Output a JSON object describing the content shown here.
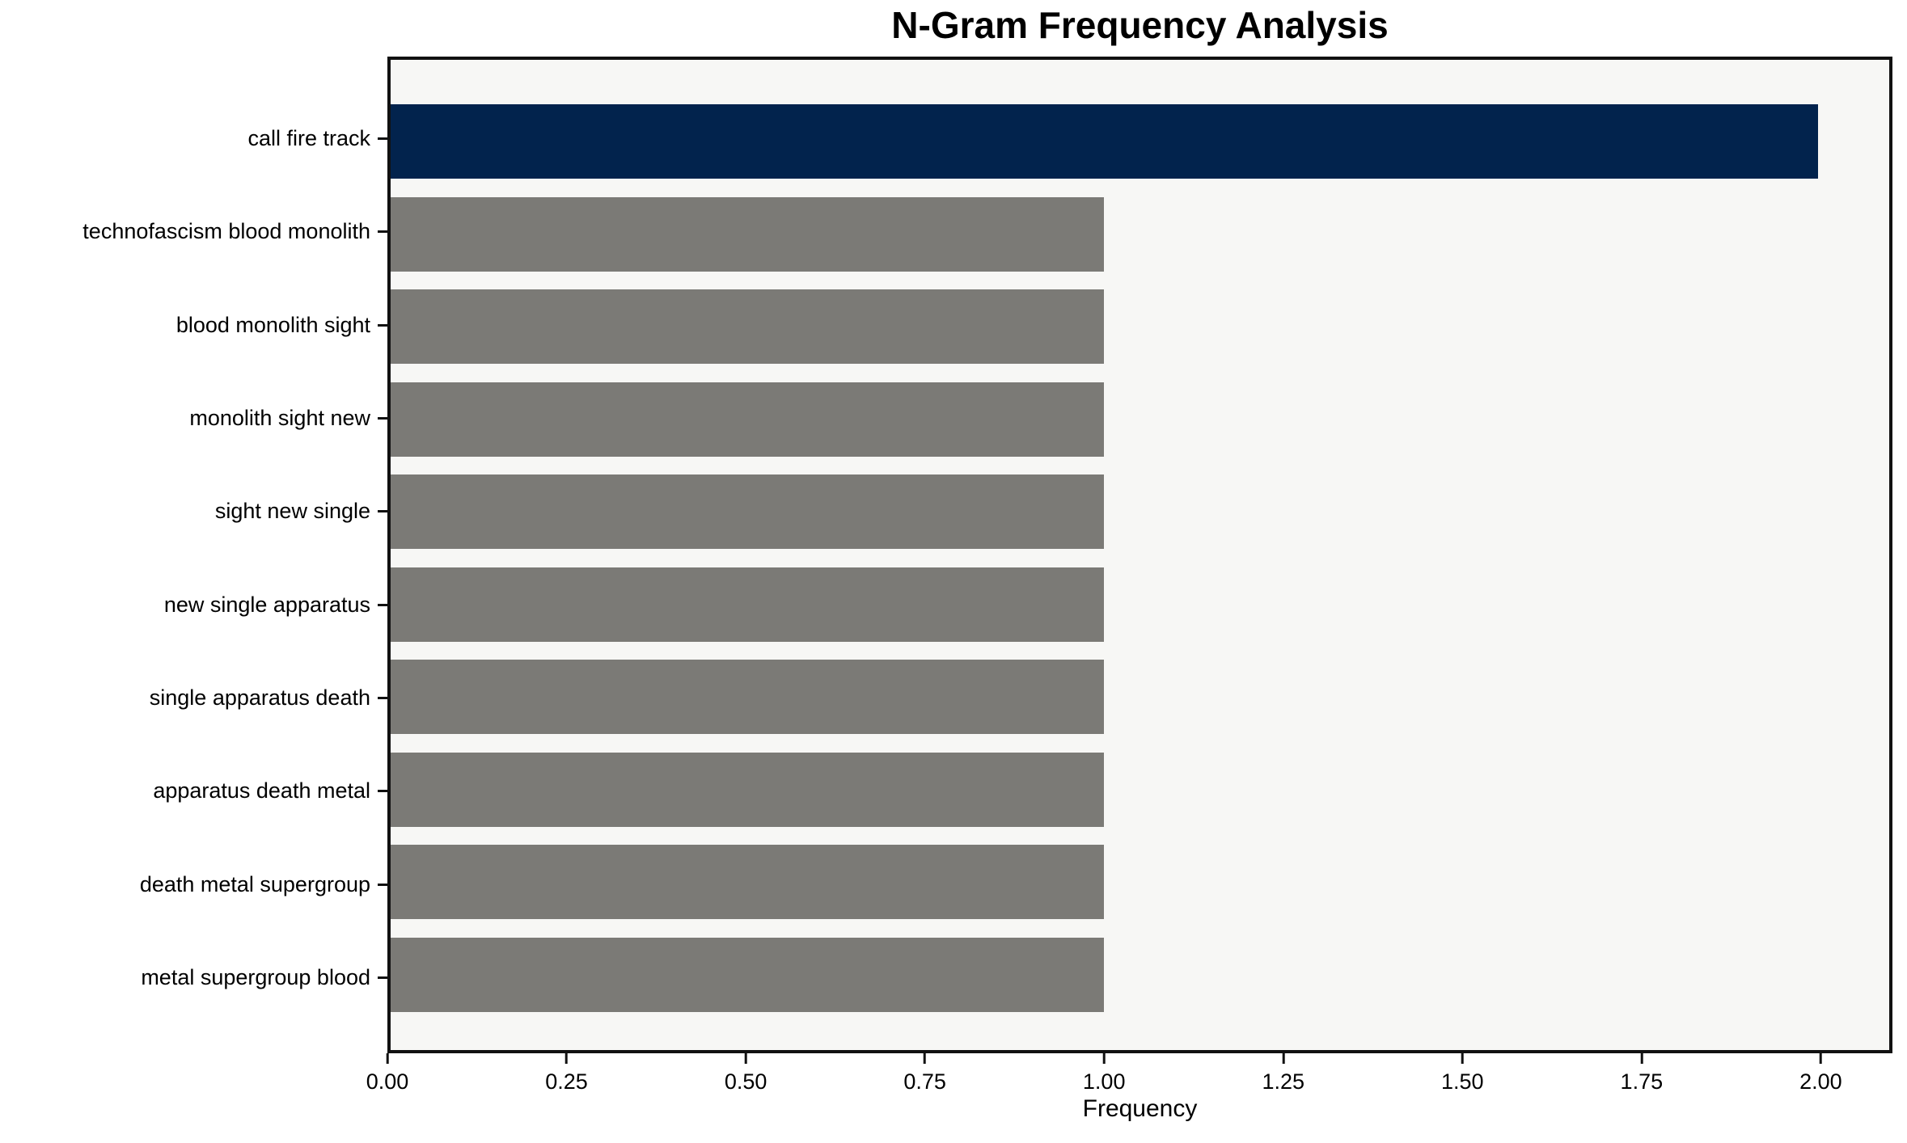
{
  "chart_data": {
    "type": "bar",
    "orientation": "horizontal",
    "title": "N-Gram Frequency Analysis",
    "xlabel": "Frequency",
    "ylabel": "",
    "categories": [
      "call fire track",
      "technofascism blood monolith",
      "blood monolith sight",
      "monolith sight new",
      "sight new single",
      "new single apparatus",
      "single apparatus death",
      "apparatus death metal",
      "death metal supergroup",
      "metal supergroup blood"
    ],
    "values": [
      2,
      1,
      1,
      1,
      1,
      1,
      1,
      1,
      1,
      1
    ],
    "xlim": [
      0,
      2.1
    ],
    "xticks": [
      "0.00",
      "0.25",
      "0.50",
      "0.75",
      "1.00",
      "1.25",
      "1.50",
      "1.75",
      "2.00"
    ],
    "xtick_values": [
      0,
      0.25,
      0.5,
      0.75,
      1.0,
      1.25,
      1.5,
      1.75,
      2.0
    ],
    "grid": false,
    "legend": null,
    "colors": {
      "highlight": "#02234d",
      "default": "#7b7a76",
      "plot_background": "#f7f7f5",
      "figure_background": "#ffffff",
      "spine": "#111111",
      "text": "#000000"
    },
    "highlight_index": 0
  }
}
